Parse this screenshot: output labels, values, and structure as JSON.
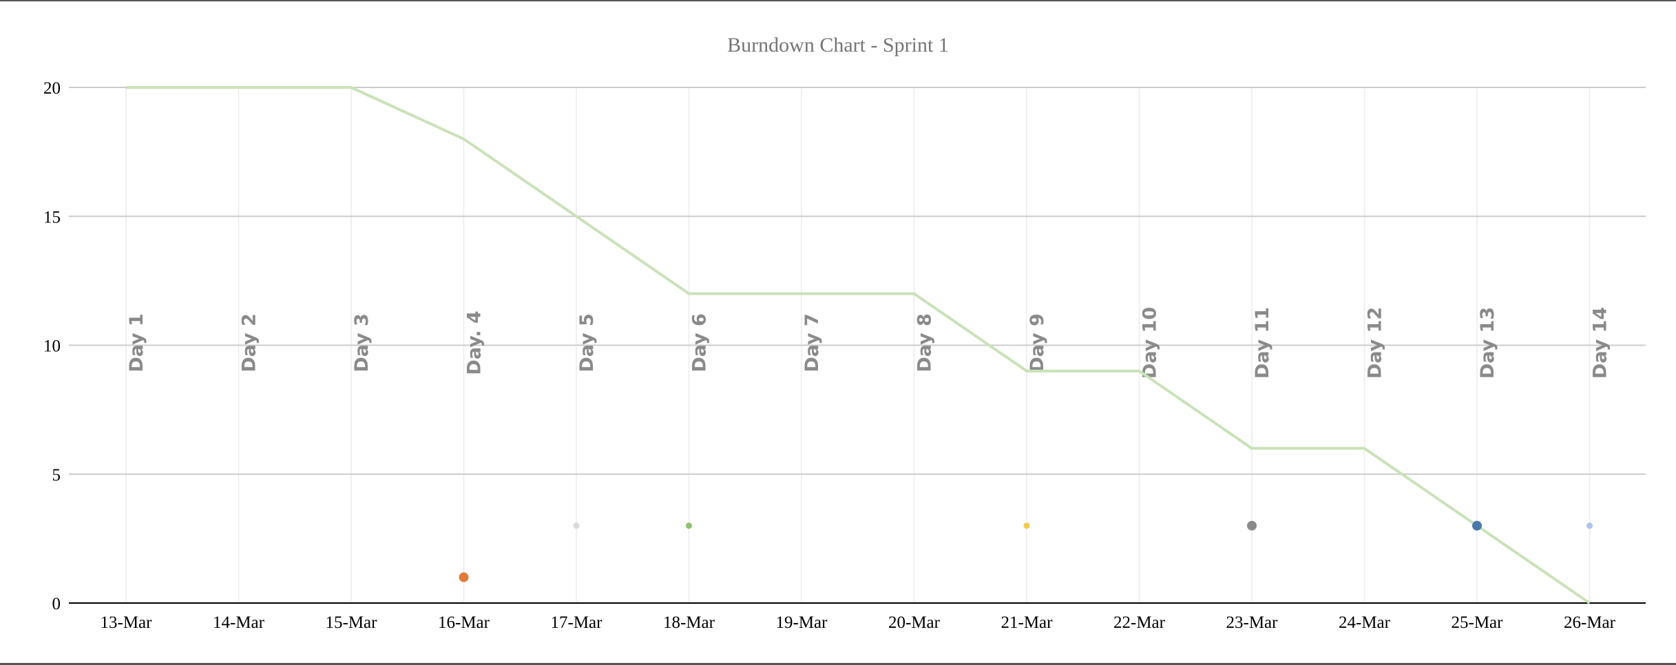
{
  "chart_data": {
    "type": "line",
    "title": "Burndown Chart - Sprint 1",
    "xlabel": "",
    "ylabel": "",
    "categories": [
      "13-Mar",
      "14-Mar",
      "15-Mar",
      "16-Mar",
      "17-Mar",
      "18-Mar",
      "19-Mar",
      "20-Mar",
      "21-Mar",
      "22-Mar",
      "23-Mar",
      "24-Mar",
      "25-Mar",
      "26-Mar"
    ],
    "day_labels": [
      "Day 1",
      "Day 2",
      "Day 3",
      "Day. 4",
      "Day 5",
      "Day 6",
      "Day 7",
      "Day 8",
      "Day 9",
      "Day 10",
      "Day 11",
      "Day 12",
      "Day 13",
      "Day 14"
    ],
    "ylim": [
      0,
      20
    ],
    "yticks": [
      0,
      5,
      10,
      15,
      20
    ],
    "grid": true,
    "legend": "none",
    "series": [
      {
        "values": [
          20,
          20,
          20,
          18,
          15,
          12,
          12,
          12,
          9,
          9,
          6,
          6,
          3,
          0
        ],
        "color": "#c9e2b8"
      }
    ],
    "markers": [
      {
        "x": "16-Mar",
        "y": 1,
        "color": "#e07b39",
        "size": "large"
      },
      {
        "x": "17-Mar",
        "y": 3,
        "color": "#d9d9d9",
        "size": "small"
      },
      {
        "x": "18-Mar",
        "y": 3,
        "color": "#8fbf6f",
        "size": "small"
      },
      {
        "x": "21-Mar",
        "y": 3,
        "color": "#f2c94c",
        "size": "small"
      },
      {
        "x": "23-Mar",
        "y": 3,
        "color": "#8a8a8a",
        "size": "large"
      },
      {
        "x": "25-Mar",
        "y": 3,
        "color": "#4a78a8",
        "size": "large"
      },
      {
        "x": "26-Mar",
        "y": 3,
        "color": "#aac4e6",
        "size": "small"
      }
    ]
  }
}
